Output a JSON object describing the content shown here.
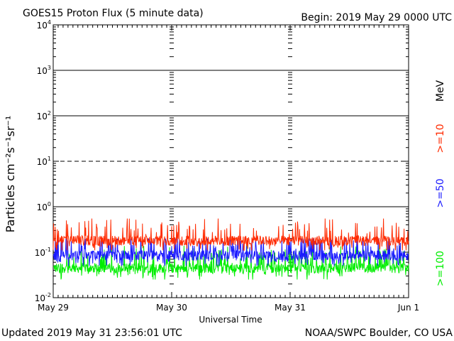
{
  "chart_data": {
    "type": "line",
    "title": "GOES15 Proton Flux (5 minute data)",
    "begin_label": "Begin: 2019 May 29 0000 UTC",
    "ylabel": "Particles cm⁻²s⁻¹sr⁻¹",
    "xlabel": "Universal Time",
    "units_label": "MeV",
    "updated_label": "Updated 2019 May 31 23:56:01 UTC",
    "credit_label": "NOAA/SWPC Boulder, CO USA",
    "y_scale": "log",
    "ylim": [
      0.01,
      10000
    ],
    "y_ticks": [
      {
        "value": 10000,
        "base": "10",
        "exp": "4"
      },
      {
        "value": 1000,
        "base": "10",
        "exp": "3"
      },
      {
        "value": 100,
        "base": "10",
        "exp": "2"
      },
      {
        "value": 10,
        "base": "10",
        "exp": "1"
      },
      {
        "value": 1,
        "base": "10",
        "exp": "0"
      },
      {
        "value": 0.1,
        "base": "10",
        "exp": "-1"
      },
      {
        "value": 0.01,
        "base": "10",
        "exp": "-2"
      }
    ],
    "x_ticks": [
      "May 29",
      "May 30",
      "May 31",
      "Jun 1"
    ],
    "xlim_days": [
      0,
      3
    ],
    "reference_lines": [
      {
        "value": 10,
        "style": "dashed"
      },
      {
        "value": 1,
        "style": "solid"
      }
    ],
    "series": [
      {
        "name": ">=10",
        "color": "#ff2a00",
        "typical_value": 0.18,
        "range": [
          0.11,
          0.55
        ]
      },
      {
        "name": ">=50",
        "color": "#1a1aff",
        "typical_value": 0.085,
        "range": [
          0.05,
          0.2
        ]
      },
      {
        "name": ">=100",
        "color": "#00ee00",
        "typical_value": 0.045,
        "range": [
          0.025,
          0.15
        ]
      }
    ]
  }
}
